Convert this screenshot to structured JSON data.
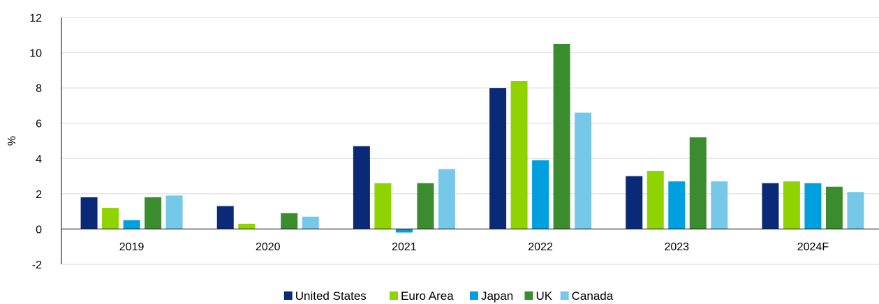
{
  "chart_data": {
    "type": "bar",
    "title": "",
    "xlabel": "",
    "ylabel": "%",
    "ylim": [
      -2,
      12
    ],
    "yticks": [
      "-2",
      "0",
      "2",
      "4",
      "6",
      "8",
      "10",
      "12"
    ],
    "grid": true,
    "legend_position": "bottom",
    "categories": [
      "2019",
      "2020",
      "2021",
      "2022",
      "2023",
      "2024F"
    ],
    "series": [
      {
        "name": "United States",
        "color": "#0a2a78",
        "values": [
          1.8,
          1.3,
          4.7,
          8.0,
          3.0,
          2.6
        ]
      },
      {
        "name": "Euro Area",
        "color": "#8fd400",
        "values": [
          1.2,
          0.3,
          2.6,
          8.4,
          3.3,
          2.7
        ]
      },
      {
        "name": "Japan",
        "color": "#00a0e0",
        "values": [
          0.5,
          0.0,
          -0.2,
          3.9,
          2.7,
          2.6
        ]
      },
      {
        "name": "UK",
        "color": "#3b8c2f",
        "values": [
          1.8,
          0.9,
          2.6,
          10.5,
          5.2,
          2.4
        ]
      },
      {
        "name": "Canada",
        "color": "#75c8e8",
        "values": [
          1.9,
          0.7,
          3.4,
          6.6,
          2.7,
          2.1
        ]
      }
    ]
  }
}
